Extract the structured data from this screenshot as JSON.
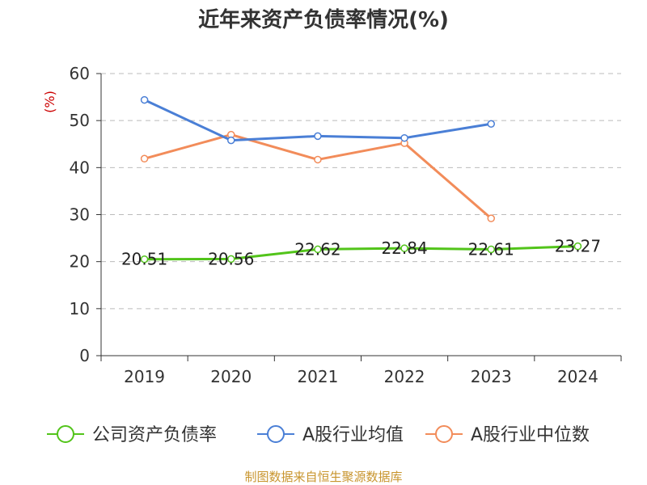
{
  "chart_data": {
    "type": "line",
    "title": "近年来资产负债率情况(%)",
    "ylabel": "(%)",
    "xlabel": "",
    "categories": [
      "2019",
      "2020",
      "2021",
      "2022",
      "2023",
      "2024"
    ],
    "ylim": [
      0,
      60
    ],
    "yticks": [
      0,
      10,
      20,
      30,
      40,
      50,
      60
    ],
    "grid": true,
    "legend_position": "bottom",
    "series": [
      {
        "name": "公司资产负债率",
        "color": "#52c41a",
        "values": [
          20.51,
          20.56,
          22.62,
          22.84,
          22.61,
          23.27
        ],
        "labels": [
          "20.51",
          "20.56",
          "22.62",
          "22.84",
          "22.61",
          "23.27"
        ]
      },
      {
        "name": "A股行业均值",
        "color": "#4a7fd6",
        "values": [
          54.4,
          45.8,
          46.7,
          46.3,
          49.3,
          null
        ]
      },
      {
        "name": "A股行业中位数",
        "color": "#f28c5a",
        "values": [
          41.9,
          47.0,
          41.7,
          45.2,
          29.2,
          null
        ]
      }
    ]
  },
  "source": "制图数据来自恒生聚源数据库",
  "colors": {
    "axis": "#333333",
    "grid": "#bbbbbb",
    "ylabel": "#cc0000",
    "source": "#c8952e"
  }
}
